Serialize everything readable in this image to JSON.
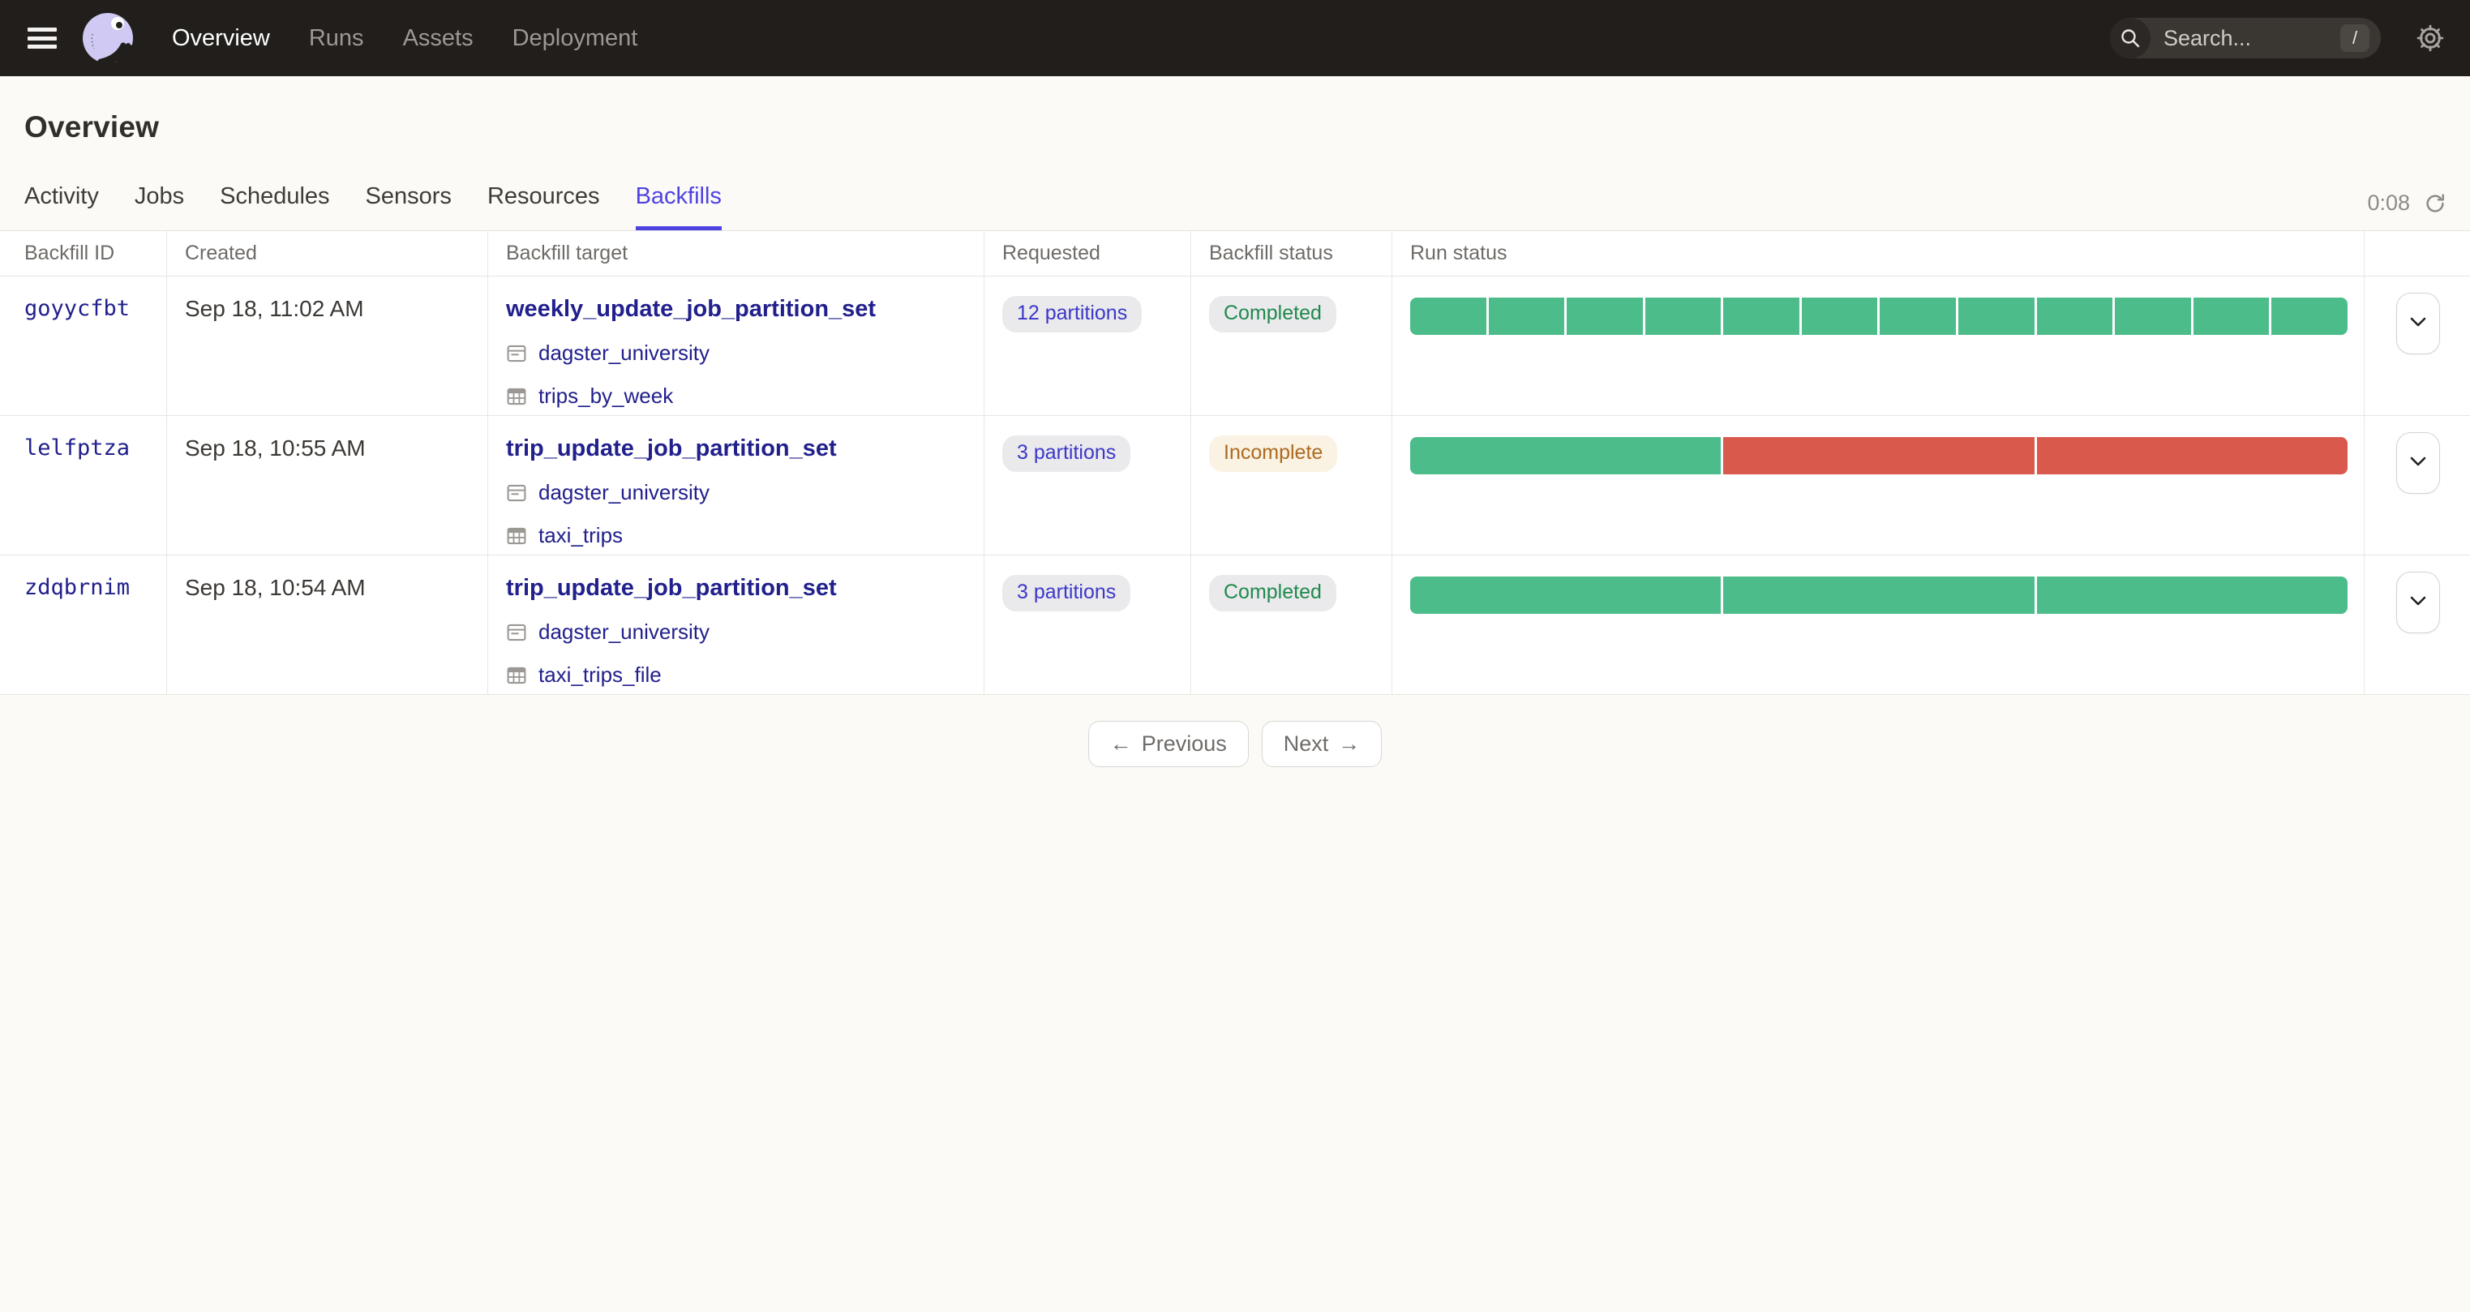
{
  "topbar": {
    "nav": [
      {
        "label": "Overview",
        "active": true
      },
      {
        "label": "Runs",
        "active": false
      },
      {
        "label": "Assets",
        "active": false
      },
      {
        "label": "Deployment",
        "active": false
      }
    ],
    "search": {
      "placeholder": "Search...",
      "shortcut": "/"
    }
  },
  "page": {
    "title": "Overview",
    "tabs": [
      {
        "label": "Activity",
        "active": false
      },
      {
        "label": "Jobs",
        "active": false
      },
      {
        "label": "Schedules",
        "active": false
      },
      {
        "label": "Sensors",
        "active": false
      },
      {
        "label": "Resources",
        "active": false
      },
      {
        "label": "Backfills",
        "active": true
      }
    ],
    "refresh_timer": "0:08"
  },
  "table": {
    "columns": [
      "Backfill ID",
      "Created",
      "Backfill target",
      "Requested",
      "Backfill status",
      "Run status"
    ],
    "rows": [
      {
        "id": "goyycfbt",
        "created": "Sep 18, 11:02 AM",
        "target": "weekly_update_job_partition_set",
        "code_location": "dagster_university",
        "asset": "trips_by_week",
        "requested": "12 partitions",
        "status": "Completed",
        "status_kind": "completed",
        "segments": [
          "success",
          "success",
          "success",
          "success",
          "success",
          "success",
          "success",
          "success",
          "success",
          "success",
          "success",
          "success"
        ]
      },
      {
        "id": "lelfptza",
        "created": "Sep 18, 10:55 AM",
        "target": "trip_update_job_partition_set",
        "code_location": "dagster_university",
        "asset": "taxi_trips",
        "requested": "3 partitions",
        "status": "Incomplete",
        "status_kind": "incomplete",
        "segments": [
          "success",
          "failure",
          "failure"
        ]
      },
      {
        "id": "zdqbrnim",
        "created": "Sep 18, 10:54 AM",
        "target": "trip_update_job_partition_set",
        "code_location": "dagster_university",
        "asset": "taxi_trips_file",
        "requested": "3 partitions",
        "status": "Completed",
        "status_kind": "completed",
        "segments": [
          "success",
          "success",
          "success"
        ]
      }
    ]
  },
  "pagination": {
    "previous": "Previous",
    "next": "Next"
  },
  "colors": {
    "success_green": "#4CBD8A",
    "failure_red": "#D9594C",
    "accent_blue": "#4F43E0",
    "link_navy": "#21208C",
    "topbar_bg": "#211E1B"
  }
}
